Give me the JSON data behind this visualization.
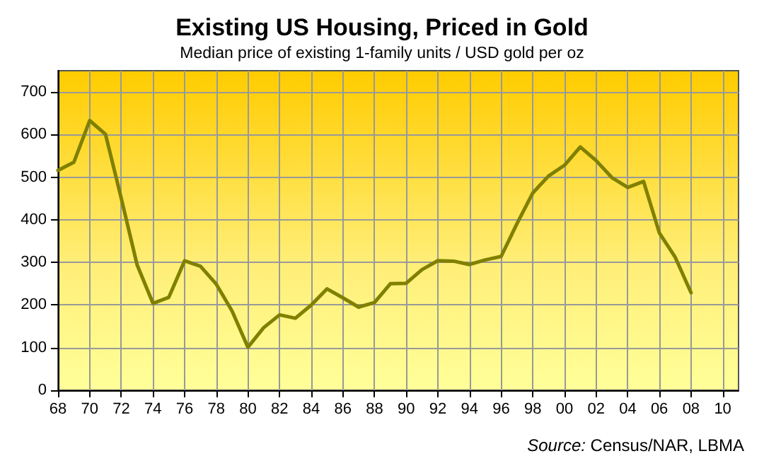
{
  "chart_data": {
    "type": "line",
    "title": "Existing US Housing, Priced in Gold",
    "subtitle": "Median price of existing 1-family units / USD gold per oz",
    "x": [
      1968,
      1969,
      1970,
      1971,
      1972,
      1973,
      1974,
      1975,
      1976,
      1977,
      1978,
      1979,
      1980,
      1981,
      1982,
      1983,
      1984,
      1985,
      1986,
      1987,
      1988,
      1989,
      1990,
      1991,
      1992,
      1993,
      1994,
      1995,
      1996,
      1997,
      1998,
      1999,
      2000,
      2001,
      2002,
      2003,
      2004,
      2005,
      2006,
      2007,
      2008
    ],
    "series": [
      {
        "color": "#808000",
        "values": [
          516,
          535,
          633,
          601,
          450,
          294,
          204,
          218,
          304,
          291,
          249,
          186,
          101,
          147,
          177,
          169,
          200,
          238,
          217,
          195,
          206,
          250,
          251,
          283,
          304,
          303,
          295,
          306,
          314,
          391,
          463,
          503,
          528,
          571,
          539,
          499,
          476,
          490,
          369,
          312,
          229
        ]
      }
    ],
    "xlim": [
      1968,
      2011
    ],
    "xticks": [
      {
        "value": 1968,
        "label": "68"
      },
      {
        "value": 1970,
        "label": "70"
      },
      {
        "value": 1972,
        "label": "72"
      },
      {
        "value": 1974,
        "label": "74"
      },
      {
        "value": 1976,
        "label": "76"
      },
      {
        "value": 1978,
        "label": "78"
      },
      {
        "value": 1980,
        "label": "80"
      },
      {
        "value": 1982,
        "label": "82"
      },
      {
        "value": 1984,
        "label": "84"
      },
      {
        "value": 1986,
        "label": "86"
      },
      {
        "value": 1988,
        "label": "88"
      },
      {
        "value": 1990,
        "label": "90"
      },
      {
        "value": 1992,
        "label": "92"
      },
      {
        "value": 1994,
        "label": "94"
      },
      {
        "value": 1996,
        "label": "96"
      },
      {
        "value": 1998,
        "label": "98"
      },
      {
        "value": 2000,
        "label": "00"
      },
      {
        "value": 2002,
        "label": "02"
      },
      {
        "value": 2004,
        "label": "04"
      },
      {
        "value": 2006,
        "label": "06"
      },
      {
        "value": 2008,
        "label": "08"
      },
      {
        "value": 2010,
        "label": "10"
      }
    ],
    "ylim": [
      0,
      750
    ],
    "yticks": [
      0,
      100,
      200,
      300,
      400,
      500,
      600,
      700
    ],
    "grid": true,
    "marker": "none",
    "line_style": "solid",
    "annotations": [
      "Source: Census/NAR, LBMA"
    ]
  }
}
